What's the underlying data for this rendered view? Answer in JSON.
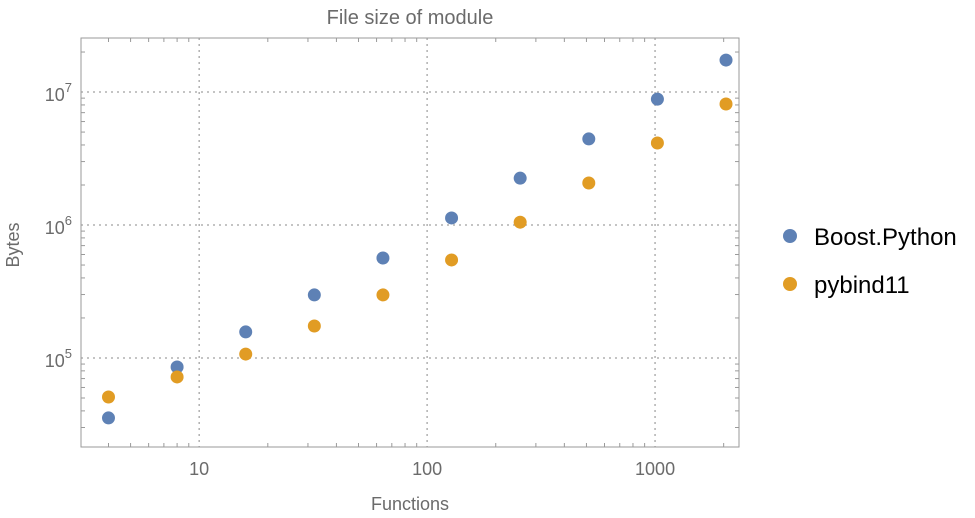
{
  "chart_data": {
    "type": "scatter",
    "title": "File size of module",
    "xlabel": "Functions",
    "ylabel": "Bytes",
    "xscale": "log",
    "yscale": "log",
    "xlim": [
      3.03,
      2335
    ],
    "ylim": [
      21400,
      25500000
    ],
    "grid": true,
    "legend_position": "right",
    "x_ticks": [
      {
        "value": 10,
        "label": "10"
      },
      {
        "value": 100,
        "label": "100"
      },
      {
        "value": 1000,
        "label": "1000"
      }
    ],
    "y_ticks": [
      {
        "value": 100000,
        "base": "10",
        "exp": "5"
      },
      {
        "value": 1000000,
        "base": "10",
        "exp": "6"
      },
      {
        "value": 10000000,
        "base": "10",
        "exp": "7"
      }
    ],
    "x": [
      4,
      8,
      16,
      32,
      64,
      128,
      256,
      512,
      1024,
      2048
    ],
    "series": [
      {
        "name": "Boost.Python",
        "color": "#5e81b5",
        "values": [
          35400,
          85500,
          157000,
          298000,
          565000,
          1130000,
          2250000,
          4440000,
          8850000,
          17400000
        ]
      },
      {
        "name": "pybind11",
        "color": "#e19c24",
        "values": [
          50900,
          72000,
          107000,
          174000,
          298000,
          546000,
          1050000,
          2070000,
          4140000,
          8130000
        ]
      }
    ]
  }
}
